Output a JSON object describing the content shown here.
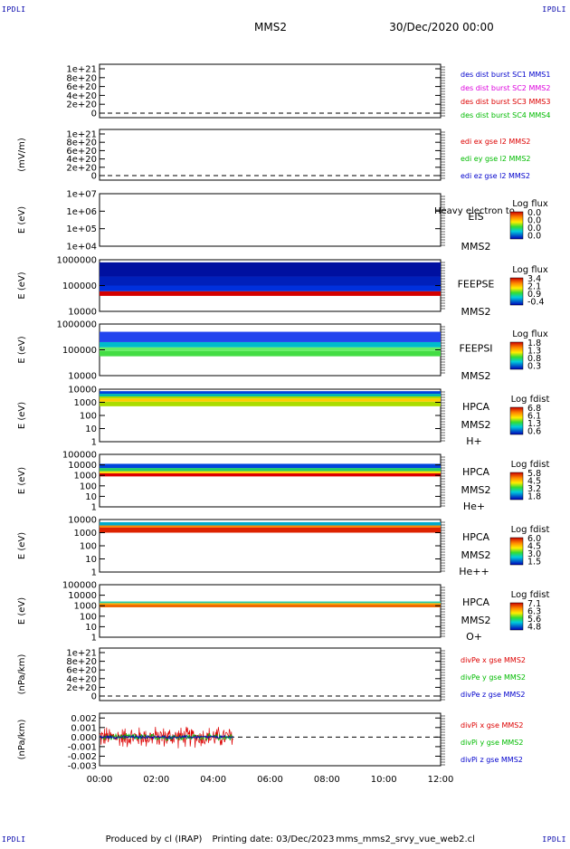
{
  "corner_marks": {
    "top_left": "IPDLI",
    "top_right": "IPDLI",
    "bottom_left": "IPDLI",
    "bottom_right": "IPDLI"
  },
  "header": {
    "spacecraft": "MMS2",
    "datetime": "30/Dec/2020 00:00"
  },
  "footer": {
    "produced_by": "Produced by cl (IRAP)",
    "printing_date": "Printing date: 03/Dec/2023",
    "file": "mms_mms2_srvy_vue_web2.cl"
  },
  "colors": {
    "blue": "#0000cc",
    "magenta": "#dd00dd",
    "red": "#dd0000",
    "green": "#00bb00"
  },
  "x_axis": {
    "range_hours": [
      0,
      12
    ],
    "ticks": [
      "00:00",
      "02:00",
      "04:00",
      "06:00",
      "08:00",
      "10:00",
      "12:00"
    ]
  },
  "chart_data": [
    {
      "type": "line",
      "id": "des-dist",
      "ylabel": "",
      "yticks": [
        "1e+21",
        "8e+20",
        "6e+20",
        "4e+20",
        "2e+20",
        "0"
      ],
      "ylim": [
        0,
        1e+21
      ],
      "legend": [
        {
          "label": "des dist burst SC1 MMS1",
          "color": "#0000cc"
        },
        {
          "label": "des dist burst SC2 MMS2",
          "color": "#dd00dd"
        },
        {
          "label": "des dist burst SC3 MMS3",
          "color": "#dd0000"
        },
        {
          "label": "des dist burst SC4 MMS4",
          "color": "#00bb00"
        }
      ],
      "zero_line": true
    },
    {
      "type": "line",
      "id": "edi-e",
      "ylabel": "(mV/m)",
      "yticks": [
        "1e+21",
        "8e+20",
        "6e+20",
        "4e+20",
        "2e+20",
        "0"
      ],
      "ylim": [
        0,
        1e+21
      ],
      "legend": [
        {
          "label": "edi ex gse l2 MMS2",
          "color": "#dd0000"
        },
        {
          "label": "edi ey gse l2 MMS2",
          "color": "#00bb00"
        },
        {
          "label": "edi ez gse l2 MMS2",
          "color": "#0000cc"
        }
      ],
      "zero_line": true
    },
    {
      "type": "heatmap",
      "id": "eis",
      "ylabel": "E (eV)",
      "yticks": [
        "1e+07",
        "1e+06",
        "1e+05",
        "1e+04"
      ],
      "ylim_log": [
        4,
        7
      ],
      "instrument": [
        "EIS",
        "MMS2"
      ],
      "overlay_text": "Heavy electron to",
      "colorbar_title": "Log flux",
      "colorbar_ticks": [
        "0.0",
        "0.0",
        "0.0",
        "0.0"
      ],
      "bands": []
    },
    {
      "type": "heatmap",
      "id": "feepse",
      "ylabel": "E (eV)",
      "yticks": [
        "1000000",
        "100000",
        "10000"
      ],
      "ylim_log": [
        4,
        6
      ],
      "instrument": [
        "FEEPSE",
        "MMS2"
      ],
      "colorbar_title": "Log flux",
      "colorbar_ticks": [
        "3.4",
        "2.1",
        "0.9",
        "-0.4"
      ],
      "bands": [
        {
          "x": [
            0,
            12
          ],
          "y_log": [
            4.6,
            4.78
          ],
          "color": "#d40000"
        },
        {
          "x": [
            0,
            12
          ],
          "y_log": [
            4.78,
            5.0
          ],
          "color": "#0030dd"
        },
        {
          "x": [
            0,
            12
          ],
          "y_log": [
            5.0,
            5.35
          ],
          "color": "#0020bb"
        },
        {
          "x": [
            0,
            12
          ],
          "y_log": [
            5.35,
            5.9
          ],
          "color": "#0010a0"
        }
      ]
    },
    {
      "type": "heatmap",
      "id": "feepsi",
      "ylabel": "E (eV)",
      "yticks": [
        "1000000",
        "100000",
        "10000"
      ],
      "ylim_log": [
        4,
        6
      ],
      "instrument": [
        "FEEPSI",
        "MMS2"
      ],
      "colorbar_title": "Log flux",
      "colorbar_ticks": [
        "1.8",
        "1.3",
        "0.8",
        "0.3"
      ],
      "bands": [
        {
          "x": [
            0,
            12
          ],
          "y_log": [
            4.75,
            4.95
          ],
          "color": "#44dd44"
        },
        {
          "x": [
            0,
            12
          ],
          "y_log": [
            4.95,
            5.1
          ],
          "color": "#66ee66"
        },
        {
          "x": [
            0,
            12
          ],
          "y_log": [
            5.1,
            5.3
          ],
          "color": "#00bbcc"
        },
        {
          "x": [
            0,
            12
          ],
          "y_log": [
            5.3,
            5.7
          ],
          "color": "#2244ee"
        }
      ]
    },
    {
      "type": "heatmap",
      "id": "hpca-h",
      "ylabel": "E (eV)",
      "yticks": [
        "10000",
        "1000",
        "100",
        "10",
        "1"
      ],
      "ylim_log": [
        0,
        4
      ],
      "instrument": [
        "HPCA",
        "MMS2",
        "H+"
      ],
      "colorbar_title": "Log fdist",
      "colorbar_ticks": [
        "6.8",
        "6.1",
        "1.3",
        "0.6"
      ],
      "bands": [
        {
          "x": [
            0,
            12
          ],
          "y_log": [
            2.7,
            3.05
          ],
          "color": "#aadd00"
        },
        {
          "x": [
            0,
            12
          ],
          "y_log": [
            3.05,
            3.3
          ],
          "color": "#ffcc00"
        },
        {
          "x": [
            0,
            12
          ],
          "y_log": [
            3.3,
            3.45
          ],
          "color": "#aadd00"
        },
        {
          "x": [
            0,
            12
          ],
          "y_log": [
            3.45,
            3.65
          ],
          "color": "#00bbaa"
        },
        {
          "x": [
            0,
            12
          ],
          "y_log": [
            3.65,
            3.85
          ],
          "color": "#0044dd"
        }
      ]
    },
    {
      "type": "heatmap",
      "id": "hpca-he",
      "ylabel": "E (eV)",
      "yticks": [
        "100000",
        "10000",
        "1000",
        "100",
        "10",
        "1"
      ],
      "ylim_log": [
        0,
        5
      ],
      "instrument": [
        "HPCA",
        "MMS2",
        "He+"
      ],
      "colorbar_title": "Log fdist",
      "colorbar_ticks": [
        "5.8",
        "4.5",
        "3.2",
        "1.8"
      ],
      "bands": [
        {
          "x": [
            0,
            12
          ],
          "y_log": [
            2.9,
            3.2
          ],
          "color": "#dd0000"
        },
        {
          "x": [
            0,
            12
          ],
          "y_log": [
            3.2,
            3.4
          ],
          "color": "#ffdd00"
        },
        {
          "x": [
            0,
            12
          ],
          "y_log": [
            3.4,
            3.7
          ],
          "color": "#22cc66"
        },
        {
          "x": [
            0,
            12
          ],
          "y_log": [
            3.7,
            4.1
          ],
          "color": "#0044dd"
        }
      ]
    },
    {
      "type": "heatmap",
      "id": "hpca-hepp",
      "ylabel": "E (eV)",
      "yticks": [
        "10000",
        "1000",
        "100",
        "10",
        "1"
      ],
      "ylim_log": [
        0,
        4
      ],
      "instrument": [
        "HPCA",
        "MMS2",
        "He++"
      ],
      "colorbar_title": "Log fdist",
      "colorbar_ticks": [
        "6.0",
        "4.5",
        "3.0",
        "1.5"
      ],
      "bands": [
        {
          "x": [
            0,
            12
          ],
          "y_log": [
            3.0,
            3.4
          ],
          "color": "#dd2200"
        },
        {
          "x": [
            0,
            12
          ],
          "y_log": [
            3.4,
            3.55
          ],
          "color": "#ff8800"
        },
        {
          "x": [
            0,
            12
          ],
          "y_log": [
            3.55,
            3.8
          ],
          "color": "#00aacc"
        }
      ]
    },
    {
      "type": "heatmap",
      "id": "hpca-o",
      "ylabel": "E (eV)",
      "yticks": [
        "100000",
        "10000",
        "1000",
        "100",
        "10",
        "1"
      ],
      "ylim_log": [
        0,
        5
      ],
      "instrument": [
        "HPCA",
        "MMS2",
        "O+"
      ],
      "colorbar_title": "Log fdist",
      "colorbar_ticks": [
        "7.1",
        "6.3",
        "5.6",
        "4.8"
      ],
      "bands": [
        {
          "x": [
            0,
            12
          ],
          "y_log": [
            2.85,
            3.1
          ],
          "color": "#ee6600"
        },
        {
          "x": [
            0,
            12
          ],
          "y_log": [
            3.1,
            3.25
          ],
          "color": "#ffaa00"
        },
        {
          "x": [
            0,
            12
          ],
          "y_log": [
            3.25,
            3.4
          ],
          "color": "#22ccaa"
        }
      ]
    },
    {
      "type": "line",
      "id": "divpe",
      "ylabel": "(nPa/km)",
      "yticks": [
        "1e+21",
        "8e+20",
        "6e+20",
        "4e+20",
        "2e+20",
        "0"
      ],
      "ylim": [
        0,
        1e+21
      ],
      "legend": [
        {
          "label": "divPe x gse MMS2",
          "color": "#dd0000"
        },
        {
          "label": "divPe y gse MMS2",
          "color": "#00bb00"
        },
        {
          "label": "divPe z gse MMS2",
          "color": "#0000cc"
        }
      ],
      "zero_line": true
    },
    {
      "type": "line",
      "id": "divpi",
      "ylabel": "(nPa/km)",
      "yticks": [
        "0.002",
        "0.001",
        "0.000",
        "-0.001",
        "-0.002",
        "-0.003"
      ],
      "ylim": [
        -0.003,
        0.0025
      ],
      "legend": [
        {
          "label": "divPi x gse MMS2",
          "color": "#dd0000"
        },
        {
          "label": "divPi y gse MMS2",
          "color": "#00bb00"
        },
        {
          "label": "divPi z gse MMS2",
          "color": "#0000cc"
        }
      ],
      "zero_line": true,
      "series": [
        {
          "name": "divPi x gse MMS2",
          "color": "#dd0000",
          "x_range": [
            0,
            4.7
          ],
          "amplitude": 0.0013
        },
        {
          "name": "divPi y gse MMS2",
          "color": "#00bb00",
          "x_range": [
            0,
            4.7
          ],
          "amplitude": 0.0004
        },
        {
          "name": "divPi z gse MMS2",
          "color": "#0000cc",
          "x_range": [
            0,
            4.7
          ],
          "amplitude": 0.0002
        }
      ]
    }
  ]
}
